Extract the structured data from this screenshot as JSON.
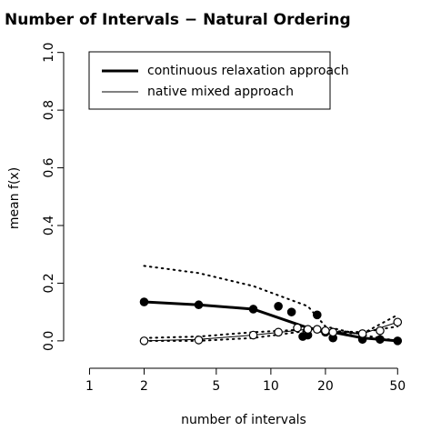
{
  "chart_data": {
    "type": "line",
    "title": "Number of Intervals − Natural Ordering",
    "x_label": "number of intervals",
    "y_label": "mean f(x)",
    "log_x": true,
    "xlim": [
      0.72,
      65
    ],
    "ylim": [
      -0.095,
      1.04
    ],
    "xticks": [
      1,
      2,
      5,
      10,
      20,
      50
    ],
    "yticks": [
      {
        "value": 0,
        "label": "0.0"
      },
      {
        "value": 0.2,
        "label": "0.2"
      },
      {
        "value": 0.4,
        "label": "0.4"
      },
      {
        "value": 0.6,
        "label": "0.6"
      },
      {
        "value": 0.8,
        "label": "0.8"
      },
      {
        "value": 1,
        "label": "1.0"
      }
    ],
    "legend_position": "top-left",
    "series": [
      {
        "name": "continuous relaxation approach",
        "color": "#000000",
        "width": 3,
        "x": [
          2,
          4,
          8,
          16,
          20,
          32,
          50
        ],
        "values": [
          0.135,
          0.125,
          0.11,
          0.045,
          0.035,
          0.01,
          0.0
        ]
      },
      {
        "name": "native mixed approach",
        "color": "#000000",
        "width": 1,
        "x": [
          2,
          4,
          8,
          16,
          20,
          32,
          50
        ],
        "values": [
          0.0,
          0.005,
          0.02,
          0.04,
          0.035,
          0.025,
          0.065
        ]
      }
    ],
    "dotted_lines": [
      {
        "color": "#000000",
        "x": [
          2,
          4,
          8,
          16,
          20,
          32,
          50
        ],
        "values": [
          0.26,
          0.235,
          0.19,
          0.12,
          0.05,
          0.02,
          0.0
        ]
      },
      {
        "color": "#000000",
        "x": [
          2,
          4,
          8,
          16,
          20,
          32,
          50
        ],
        "values": [
          0.01,
          0.015,
          0.03,
          0.04,
          0.035,
          0.03,
          0.05
        ]
      },
      {
        "color": "#000000",
        "x": [
          2,
          4,
          8,
          16,
          20,
          32,
          50
        ],
        "values": [
          0.0,
          0.0,
          0.01,
          0.035,
          0.03,
          0.025,
          0.09
        ]
      }
    ],
    "points": [
      {
        "filled": true,
        "x": [
          2,
          4,
          8,
          11,
          13,
          15,
          16,
          18,
          20,
          22,
          32,
          40,
          50
        ],
        "values": [
          0.135,
          0.125,
          0.11,
          0.12,
          0.1,
          0.015,
          0.02,
          0.09,
          0.03,
          0.01,
          0.005,
          0.005,
          0.0
        ]
      },
      {
        "filled": false,
        "x": [
          2,
          4,
          8,
          11,
          14,
          16,
          18,
          20,
          22,
          32,
          40,
          50
        ],
        "values": [
          0.0,
          0.003,
          0.02,
          0.03,
          0.045,
          0.04,
          0.04,
          0.035,
          0.03,
          0.025,
          0.035,
          0.065
        ]
      }
    ]
  }
}
